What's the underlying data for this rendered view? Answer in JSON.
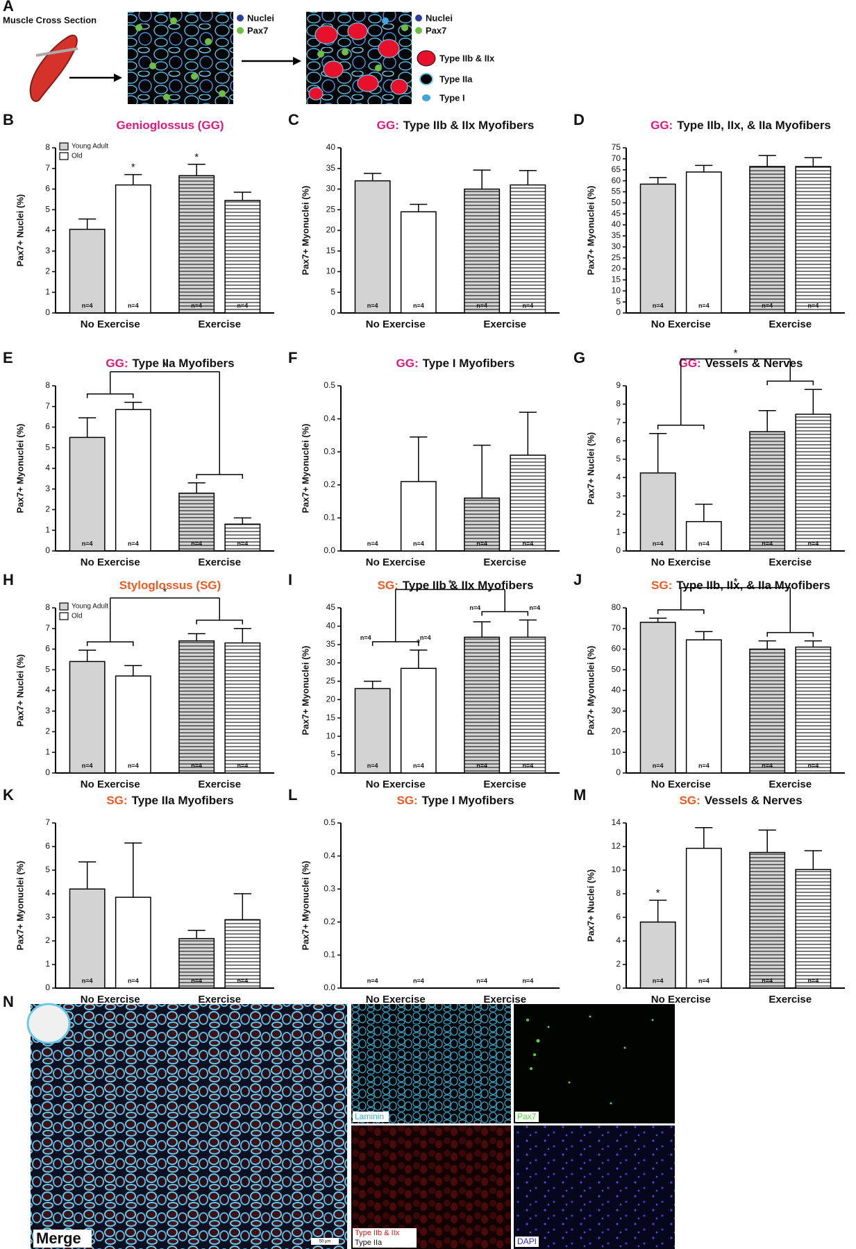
{
  "panel_a": {
    "label": "A",
    "title": "Muscle Cross Section",
    "legend1": [
      "Nuclei",
      "Pax7"
    ],
    "legend2": [
      "Nuclei",
      "Pax7",
      "Type IIb & IIx",
      "Type IIa",
      "Type I"
    ]
  },
  "panel_n": {
    "label": "N",
    "merge": "Merge",
    "laminin": "Laminin",
    "pax7": "Pax7",
    "type_iib_iix": "Type IIb & IIx",
    "type_iia": "Type IIa",
    "dapi": "DAPI",
    "scale": "50 µm"
  },
  "chart_data": [
    {
      "type": "bar",
      "panel": "B",
      "title": "Genioglossus (GG)",
      "title_color": "#e0177d",
      "ylabel": "Pax7+ Nuclei (%)",
      "categories": [
        "No Exercise",
        "Exercise"
      ],
      "striped_categories": [
        1
      ],
      "legend": "top-left",
      "series": [
        {
          "name": "Young Adult",
          "color": "#d3d3d3",
          "values": [
            4.05,
            6.65
          ],
          "errors": [
            0.5,
            0.55
          ],
          "n_labels": [
            "n=4",
            "n=4"
          ]
        },
        {
          "name": "Old",
          "color": "#ffffff",
          "values": [
            6.2,
            5.45
          ],
          "errors": [
            0.5,
            0.4
          ],
          "n_labels": [
            "n=4",
            "n=4"
          ]
        }
      ],
      "ylim": [
        0,
        8
      ],
      "yticks": [
        0,
        1,
        2,
        3,
        4,
        5,
        6,
        7,
        8
      ],
      "stars": [
        {
          "text": "*",
          "series": 1,
          "category": 0
        },
        {
          "text": "*",
          "series": 0,
          "category": 1
        }
      ]
    },
    {
      "type": "bar",
      "panel": "C",
      "title_prefix": "GG:",
      "title": "Type IIb & IIx Myofibers",
      "title_color": "#e0177d",
      "ylabel": "Pax7+ Myonuclei (%)",
      "categories": [
        "No Exercise",
        "Exercise"
      ],
      "striped_categories": [
        1
      ],
      "series": [
        {
          "color": "#d3d3d3",
          "values": [
            32,
            30
          ],
          "errors": [
            1.8,
            4.6
          ],
          "n_labels": [
            "n=4",
            "n=4"
          ]
        },
        {
          "color": "#ffffff",
          "values": [
            24.5,
            31
          ],
          "errors": [
            1.8,
            3.5
          ],
          "n_labels": [
            "n=4",
            "n=4"
          ]
        }
      ],
      "ylim": [
        0,
        40
      ],
      "yticks": [
        0,
        5,
        10,
        15,
        20,
        25,
        30,
        35,
        40
      ]
    },
    {
      "type": "bar",
      "panel": "D",
      "title_prefix": "GG:",
      "title": "Type IIb, IIx, & IIa Myofibers",
      "title_color": "#e0177d",
      "ylabel": "Pax7+ Myonuclei (%)",
      "categories": [
        "No Exercise",
        "Exercise"
      ],
      "striped_categories": [
        1
      ],
      "series": [
        {
          "color": "#d3d3d3",
          "values": [
            58.5,
            66.5
          ],
          "errors": [
            3,
            5
          ],
          "n_labels": [
            "n=4",
            "n=4"
          ]
        },
        {
          "color": "#ffffff",
          "values": [
            64,
            66.5
          ],
          "errors": [
            3,
            4
          ],
          "n_labels": [
            "n=4",
            "n=4"
          ]
        }
      ],
      "ylim": [
        0,
        75
      ],
      "yticks": [
        0,
        5,
        10,
        15,
        20,
        25,
        30,
        35,
        40,
        45,
        50,
        55,
        60,
        65,
        70,
        75
      ]
    },
    {
      "type": "bar",
      "panel": "E",
      "title_prefix": "GG:",
      "title": "Type IIa Myofibers",
      "title_color": "#e0177d",
      "ylabel": "Pax7+ Myonuclei (%)",
      "categories": [
        "No Exercise",
        "Exercise"
      ],
      "striped_categories": [
        1
      ],
      "series": [
        {
          "color": "#d3d3d3",
          "values": [
            5.5,
            2.8
          ],
          "errors": [
            0.95,
            0.5
          ],
          "n_labels": [
            "n=4",
            "n=4"
          ]
        },
        {
          "color": "#ffffff",
          "values": [
            6.85,
            1.3
          ],
          "errors": [
            0.35,
            0.3
          ],
          "n_labels": [
            "n=4",
            "n=4"
          ]
        }
      ],
      "ylim": [
        0,
        8
      ],
      "yticks": [
        0,
        1,
        2,
        3,
        4,
        5,
        6,
        7,
        8
      ],
      "bracket": {
        "text": "*"
      }
    },
    {
      "type": "bar",
      "panel": "F",
      "title_prefix": "GG:",
      "title": "Type I Myofibers",
      "title_color": "#e0177d",
      "ylabel": "Pax7+ Myonuclei (%)",
      "categories": [
        "No Exercise",
        "Exercise"
      ],
      "striped_categories": [
        1
      ],
      "series": [
        {
          "color": "#d3d3d3",
          "values": [
            0,
            0.16
          ],
          "errors": [
            0,
            0.16
          ],
          "n_labels": [
            "n=4",
            "n=4"
          ]
        },
        {
          "color": "#ffffff",
          "values": [
            0.21,
            0.29
          ],
          "errors": [
            0.135,
            0.13
          ],
          "n_labels": [
            "n=4",
            "n=4"
          ]
        }
      ],
      "ylim": [
        0,
        0.5
      ],
      "yticks": [
        {
          "value": 0,
          "label": "0.0"
        },
        0.1,
        0.2,
        0.3,
        0.4,
        0.5
      ]
    },
    {
      "type": "bar",
      "panel": "G",
      "title_prefix": "GG:",
      "title": "Vessels & Nerves",
      "title_color": "#e0177d",
      "ylabel": "Pax7+ Nuclei (%)",
      "categories": [
        "No Exercise",
        "Exercise"
      ],
      "striped_categories": [
        1
      ],
      "series": [
        {
          "color": "#d3d3d3",
          "values": [
            4.25,
            6.5
          ],
          "errors": [
            2.15,
            1.15
          ],
          "n_labels": [
            "n=4",
            "n=4"
          ]
        },
        {
          "color": "#ffffff",
          "values": [
            1.6,
            7.45
          ],
          "errors": [
            0.95,
            1.35
          ],
          "n_labels": [
            "n=4",
            "n=4"
          ]
        }
      ],
      "ylim": [
        0,
        9
      ],
      "yticks": [
        0,
        1,
        2,
        3,
        4,
        5,
        6,
        7,
        8,
        9
      ],
      "bracket": {
        "text": "*"
      }
    },
    {
      "type": "bar",
      "panel": "H",
      "title": "Styloglossus (SG)",
      "title_color": "#ef5a24",
      "ylabel": "Pax7+ Nuclei (%)",
      "categories": [
        "No Exercise",
        "Exercise"
      ],
      "striped_categories": [
        1
      ],
      "legend": "top-left",
      "series": [
        {
          "name": "Young Adult",
          "color": "#d3d3d3",
          "values": [
            5.4,
            6.4
          ],
          "errors": [
            0.55,
            0.35
          ],
          "n_labels": [
            "n=4",
            "n=4"
          ]
        },
        {
          "name": "Old",
          "color": "#ffffff",
          "values": [
            4.7,
            6.3
          ],
          "errors": [
            0.5,
            0.7
          ],
          "n_labels": [
            "n=4",
            "n=4"
          ]
        }
      ],
      "ylim": [
        0,
        8
      ],
      "yticks": [
        0,
        1,
        2,
        3,
        4,
        5,
        6,
        7,
        8
      ],
      "bracket": {
        "text": "*"
      }
    },
    {
      "type": "bar",
      "panel": "I",
      "title_prefix": "SG:",
      "title": "Type IIb & IIx Myofibers",
      "title_color": "#ef5a24",
      "ylabel": "Pax7+ Myonuclei (%)",
      "categories": [
        "No Exercise",
        "Exercise"
      ],
      "striped_categories": [
        1
      ],
      "series": [
        {
          "color": "#d3d3d3",
          "values": [
            23,
            37
          ],
          "errors": [
            2,
            4.2
          ],
          "n_labels": [
            "n=4",
            "n=4"
          ]
        },
        {
          "color": "#ffffff",
          "values": [
            28.5,
            37
          ],
          "errors": [
            5,
            4.7
          ],
          "n_labels": [
            "n=4",
            "n=4"
          ]
        }
      ],
      "ylim": [
        0,
        45
      ],
      "yticks": [
        0,
        5,
        10,
        15,
        20,
        25,
        30,
        35,
        40,
        45
      ],
      "bracket": {
        "text": "*"
      },
      "bracket_labels": [
        "n=4",
        "n=4",
        "n=4",
        "n=4"
      ],
      "stars": [
        {
          "text": "*",
          "series": 1,
          "category": 0
        }
      ]
    },
    {
      "type": "bar",
      "panel": "J",
      "title_prefix": "SG:",
      "title": "Type IIb, IIx, & IIa Myofibers",
      "title_color": "#ef5a24",
      "ylabel": "Pax7+ Myonuclei (%)",
      "categories": [
        "No Exercise",
        "Exercise"
      ],
      "striped_categories": [
        1
      ],
      "series": [
        {
          "color": "#d3d3d3",
          "values": [
            73,
            60
          ],
          "errors": [
            2,
            4
          ],
          "n_labels": [
            "n=4",
            "n=4"
          ]
        },
        {
          "color": "#ffffff",
          "values": [
            64.5,
            61
          ],
          "errors": [
            4,
            3
          ],
          "n_labels": [
            "n=4",
            "n=4"
          ]
        }
      ],
      "ylim": [
        0,
        80
      ],
      "yticks": [
        0,
        10,
        20,
        30,
        40,
        50,
        60,
        70,
        80
      ],
      "bracket": {
        "text": "*"
      }
    },
    {
      "type": "bar",
      "panel": "K",
      "title_prefix": "SG:",
      "title": "Type IIa Myofibers",
      "title_color": "#ef5a24",
      "ylabel": "Pax7+ Myonuclei (%)",
      "categories": [
        "No Exercise",
        "Exercise"
      ],
      "striped_categories": [
        1
      ],
      "series": [
        {
          "color": "#d3d3d3",
          "values": [
            4.2,
            2.1
          ],
          "errors": [
            1.15,
            0.35
          ],
          "n_labels": [
            "n=4",
            "n=4"
          ]
        },
        {
          "color": "#ffffff",
          "values": [
            3.85,
            2.9
          ],
          "errors": [
            2.3,
            1.1
          ],
          "n_labels": [
            "n=4",
            "n=4"
          ]
        }
      ],
      "ylim": [
        0,
        7
      ],
      "yticks": [
        0,
        1,
        2,
        3,
        4,
        5,
        6,
        7
      ]
    },
    {
      "type": "bar",
      "panel": "L",
      "title_prefix": "SG:",
      "title": "Type I Myofibers",
      "title_color": "#ef5a24",
      "ylabel": "Pax7+ Myonuclei (%)",
      "categories": [
        "No Exercise",
        "Exercise"
      ],
      "striped_categories": [
        1
      ],
      "series": [
        {
          "color": "#d3d3d3",
          "values": [
            0,
            0
          ],
          "errors": [
            0,
            0
          ],
          "n_labels": [
            "n=4",
            "n=4"
          ]
        },
        {
          "color": "#ffffff",
          "values": [
            0,
            0
          ],
          "errors": [
            0,
            0
          ],
          "n_labels": [
            "n=4",
            "n=4"
          ]
        }
      ],
      "ylim": [
        0,
        0.5
      ],
      "yticks": [
        {
          "value": 0,
          "label": "0.0"
        },
        0.1,
        0.2,
        0.3,
        0.4,
        0.5
      ]
    },
    {
      "type": "bar",
      "panel": "M",
      "title_prefix": "SG:",
      "title": "Vessels & Nerves",
      "title_color": "#ef5a24",
      "ylabel": "Pax7+ Nuclei (%)",
      "categories": [
        "No Exercise",
        "Exercise"
      ],
      "striped_categories": [
        1
      ],
      "series": [
        {
          "color": "#d3d3d3",
          "values": [
            5.6,
            11.5
          ],
          "errors": [
            1.85,
            1.9
          ],
          "n_labels": [
            "n=4",
            "n=4"
          ]
        },
        {
          "color": "#ffffff",
          "values": [
            11.85,
            10.05
          ],
          "errors": [
            1.75,
            1.6
          ],
          "n_labels": [
            "n=4",
            "n=4"
          ]
        }
      ],
      "ylim": [
        0,
        14
      ],
      "yticks": [
        0,
        2,
        4,
        6,
        8,
        10,
        12,
        14
      ],
      "stars": [
        {
          "text": "*",
          "series": 0,
          "category": 0
        }
      ]
    }
  ]
}
